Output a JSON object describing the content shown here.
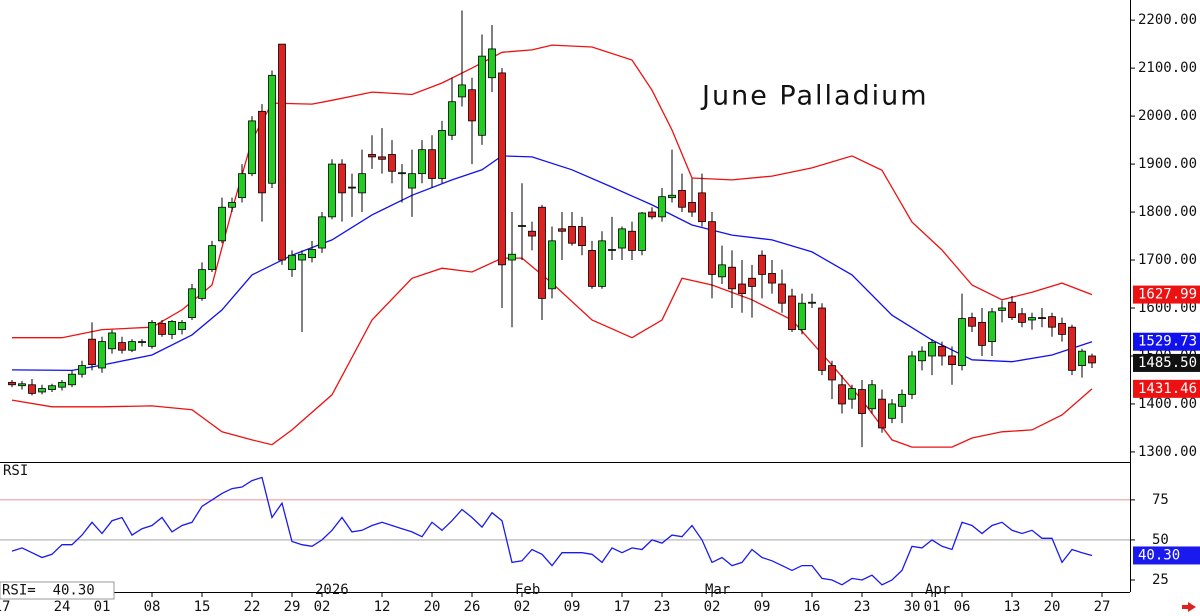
{
  "chart_data": {
    "type": "candlestick",
    "title": "June Palladium",
    "xlim": [
      -1.2,
      111.8
    ],
    "ylim": [
      1279,
      2242
    ],
    "yticks": [
      {
        "value": 1300,
        "label": "1300.00"
      },
      {
        "value": 1400,
        "label": "1400.00"
      },
      {
        "value": 1500,
        "label": "1500.00"
      },
      {
        "value": 1600,
        "label": "1600.00"
      },
      {
        "value": 1700,
        "label": "1700.00"
      },
      {
        "value": 1800,
        "label": "1800.00"
      },
      {
        "value": 1900,
        "label": "1900.00"
      },
      {
        "value": 2000,
        "label": "2000.00"
      },
      {
        "value": 2100,
        "label": "2100.00"
      },
      {
        "value": 2200,
        "label": "2200.00"
      }
    ],
    "xticks": [
      {
        "value": -1,
        "label": "17"
      },
      {
        "value": 5,
        "label": "24"
      },
      {
        "value": 9,
        "label": "01"
      },
      {
        "value": 14,
        "label": "08"
      },
      {
        "value": 19,
        "label": "15"
      },
      {
        "value": 24,
        "label": "22"
      },
      {
        "value": 28,
        "label": "29"
      },
      {
        "value": 31,
        "label": "02"
      },
      {
        "value": 37,
        "label": "12"
      },
      {
        "value": 42,
        "label": "20"
      },
      {
        "value": 46,
        "label": "26"
      },
      {
        "value": 51,
        "label": "02"
      },
      {
        "value": 56,
        "label": "09"
      },
      {
        "value": 61,
        "label": "17"
      },
      {
        "value": 65,
        "label": "23"
      },
      {
        "value": 70,
        "label": "02"
      },
      {
        "value": 75,
        "label": "09"
      },
      {
        "value": 80,
        "label": "16"
      },
      {
        "value": 85,
        "label": "23"
      },
      {
        "value": 90,
        "label": "30"
      },
      {
        "value": 92,
        "label": "01"
      },
      {
        "value": 95,
        "label": "06"
      },
      {
        "value": 100,
        "label": "13"
      },
      {
        "value": 104,
        "label": "20"
      },
      {
        "value": 109,
        "label": "27"
      }
    ],
    "month_labels": [
      {
        "value": 31,
        "label": "2026"
      },
      {
        "value": 51,
        "label": "Feb"
      },
      {
        "value": 70,
        "label": "Mar"
      },
      {
        "value": 92,
        "label": "Apr"
      }
    ],
    "candles": {
      "up_color": "#22cc22",
      "down_color": "#dd2222",
      "last_label": "1485.50",
      "open": [
        1445,
        1438,
        1440,
        1425,
        1430,
        1435,
        1440,
        1462,
        1535,
        1475,
        1515,
        1528,
        1512,
        1528,
        1520,
        1568,
        1545,
        1555,
        1580,
        1620,
        1680,
        1740,
        1810,
        1830,
        1880,
        2010,
        1860,
        2150,
        1680,
        1700,
        1705,
        1725,
        1790,
        1900,
        1850,
        1840,
        1920,
        1915,
        1920,
        1880,
        1850,
        1880,
        1930,
        1870,
        1960,
        2040,
        2055,
        1960,
        2080,
        2090,
        1700,
        1770,
        1760,
        1810,
        1640,
        1765,
        1770,
        1770,
        1720,
        1645,
        1720,
        1725,
        1760,
        1720,
        1800,
        1790,
        1830,
        1845,
        1820,
        1840,
        1780,
        1665,
        1685,
        1650,
        1662,
        1710,
        1672,
        1650,
        1625,
        1555,
        1610,
        1600,
        1480,
        1440,
        1410,
        1430,
        1390,
        1410,
        1370,
        1395,
        1420,
        1490,
        1500,
        1520,
        1500,
        1480,
        1580,
        1570,
        1530,
        1595,
        1612,
        1588,
        1575,
        1580,
        1582,
        1568,
        1560,
        1480,
        1500
      ],
      "high": [
        1450,
        1448,
        1452,
        1440,
        1442,
        1450,
        1470,
        1490,
        1570,
        1540,
        1555,
        1540,
        1535,
        1535,
        1575,
        1575,
        1575,
        1575,
        1650,
        1695,
        1740,
        1830,
        1830,
        1900,
        2000,
        2025,
        2095,
        2150,
        1720,
        1720,
        1740,
        1800,
        1910,
        1910,
        1880,
        1930,
        1960,
        1975,
        1950,
        1900,
        1930,
        1950,
        1960,
        1990,
        2080,
        2220,
        2080,
        2170,
        2190,
        2100,
        1800,
        1860,
        1780,
        1815,
        1770,
        1800,
        1800,
        1790,
        1740,
        1760,
        1790,
        1770,
        1780,
        1800,
        1810,
        1850,
        1930,
        1880,
        1870,
        1880,
        1800,
        1730,
        1720,
        1700,
        1690,
        1720,
        1700,
        1680,
        1640,
        1630,
        1630,
        1610,
        1490,
        1460,
        1440,
        1450,
        1450,
        1430,
        1410,
        1430,
        1510,
        1520,
        1535,
        1530,
        1520,
        1630,
        1590,
        1600,
        1600,
        1615,
        1625,
        1600,
        1590,
        1600,
        1590,
        1580,
        1565,
        1515,
        1505
      ],
      "low": [
        1435,
        1430,
        1418,
        1420,
        1425,
        1428,
        1435,
        1455,
        1470,
        1465,
        1505,
        1505,
        1508,
        1520,
        1515,
        1540,
        1535,
        1545,
        1575,
        1615,
        1675,
        1735,
        1800,
        1820,
        1875,
        1780,
        1850,
        1690,
        1665,
        1550,
        1695,
        1715,
        1785,
        1780,
        1790,
        1800,
        1890,
        1880,
        1860,
        1820,
        1790,
        1860,
        1850,
        1860,
        1950,
        2020,
        1900,
        1940,
        2050,
        1600,
        1560,
        1700,
        1720,
        1575,
        1620,
        1700,
        1730,
        1710,
        1640,
        1640,
        1700,
        1700,
        1700,
        1710,
        1785,
        1780,
        1820,
        1800,
        1790,
        1770,
        1620,
        1650,
        1600,
        1590,
        1580,
        1620,
        1630,
        1590,
        1550,
        1545,
        1600,
        1460,
        1410,
        1380,
        1390,
        1310,
        1380,
        1340,
        1360,
        1360,
        1410,
        1470,
        1460,
        1480,
        1440,
        1470,
        1550,
        1500,
        1500,
        1570,
        1575,
        1560,
        1555,
        1560,
        1540,
        1530,
        1460,
        1455,
        1475
      ],
      "close": [
        1440,
        1442,
        1422,
        1432,
        1438,
        1445,
        1462,
        1480,
        1482,
        1530,
        1548,
        1512,
        1530,
        1530,
        1570,
        1545,
        1572,
        1570,
        1640,
        1680,
        1730,
        1810,
        1820,
        1880,
        1990,
        1840,
        2085,
        1700,
        1710,
        1712,
        1722,
        1790,
        1900,
        1840,
        1852,
        1880,
        1915,
        1910,
        1885,
        1882,
        1880,
        1930,
        1870,
        1970,
        2030,
        2065,
        1990,
        2125,
        2140,
        1690,
        1712,
        1772,
        1750,
        1620,
        1740,
        1760,
        1735,
        1730,
        1645,
        1740,
        1722,
        1765,
        1720,
        1798,
        1790,
        1832,
        1835,
        1810,
        1800,
        1780,
        1670,
        1690,
        1640,
        1630,
        1645,
        1670,
        1652,
        1610,
        1555,
        1610,
        1612,
        1470,
        1450,
        1400,
        1432,
        1380,
        1440,
        1350,
        1400,
        1420,
        1500,
        1510,
        1528,
        1500,
        1482,
        1578,
        1562,
        1522,
        1592,
        1600,
        1580,
        1570,
        1580,
        1578,
        1560,
        1545,
        1470,
        1510,
        1485.5
      ]
    },
    "bands": [
      {
        "color": "#ee1111",
        "last_label": "1627.99",
        "x": [
          0,
          5,
          9,
          14,
          17,
          20,
          22,
          24,
          26,
          30,
          32,
          36,
          40,
          43,
          46,
          49,
          52,
          54,
          58,
          62,
          64,
          66,
          68,
          72,
          76,
          80,
          84,
          87,
          90,
          93,
          96,
          99,
          102,
          105,
          108
        ],
        "values": [
          1538,
          1538,
          1555,
          1560,
          1596,
          1648,
          1804,
          1950,
          2027,
          2025,
          2033,
          2050,
          2045,
          2069,
          2100,
          2133,
          2138,
          2148,
          2144,
          2117,
          2054,
          1971,
          1871,
          1867,
          1875,
          1892,
          1917,
          1887,
          1779,
          1721,
          1648,
          1617,
          1633,
          1652,
          1627.99
        ]
      },
      {
        "color": "#1111ee",
        "last_label": "1529.73",
        "x": [
          0,
          6,
          9,
          14,
          18,
          21,
          24,
          28,
          32,
          36,
          40,
          44,
          47,
          49,
          52,
          56,
          60,
          64,
          68,
          72,
          76,
          80,
          84,
          88,
          92,
          96,
          100,
          104,
          108
        ],
        "values": [
          1471,
          1470,
          1481,
          1502,
          1544,
          1596,
          1669,
          1710,
          1742,
          1794,
          1835,
          1867,
          1888,
          1917,
          1915,
          1888,
          1852,
          1815,
          1773,
          1752,
          1742,
          1717,
          1669,
          1585,
          1533,
          1492,
          1488,
          1502,
          1529.73
        ]
      },
      {
        "color": "#ee1111",
        "last_label": "1431.46",
        "x": [
          0,
          4,
          9,
          14,
          18,
          21,
          24,
          26,
          28,
          32,
          36,
          40,
          43,
          46,
          49,
          51,
          54,
          58,
          62,
          65,
          67,
          70,
          74,
          78,
          82,
          85,
          88,
          90,
          94,
          96,
          99,
          102,
          105,
          108
        ],
        "values": [
          1408,
          1394,
          1394,
          1396,
          1388,
          1342,
          1325,
          1315,
          1346,
          1419,
          1575,
          1662,
          1683,
          1675,
          1704,
          1704,
          1652,
          1575,
          1538,
          1575,
          1662,
          1648,
          1617,
          1575,
          1481,
          1408,
          1325,
          1310,
          1310,
          1329,
          1342,
          1346,
          1377,
          1431.46
        ]
      }
    ],
    "rsi": {
      "label": "RSI",
      "readout": "RSI=  40.30",
      "last_label": "40.30",
      "color": "#1a1aee",
      "ylim": [
        17.5,
        98
      ],
      "yticks": [
        25,
        50,
        75
      ],
      "levels": [
        {
          "value": 75,
          "color": "#e07070"
        },
        {
          "value": 50,
          "color": "#999999"
        }
      ],
      "values": [
        43,
        45,
        42,
        39,
        41,
        47,
        47,
        53,
        61,
        54,
        62,
        64,
        53,
        57,
        59,
        64,
        55,
        59,
        61,
        71,
        75,
        79,
        82,
        83,
        87,
        89,
        64,
        73,
        49,
        47,
        46,
        50,
        56,
        64,
        55,
        56,
        59,
        61,
        59,
        57,
        55,
        52,
        61,
        56,
        62,
        69,
        64,
        58,
        67,
        62,
        36,
        37,
        44,
        41,
        34,
        42,
        42,
        42,
        41,
        36,
        45,
        42,
        45,
        44,
        50,
        48,
        53,
        52,
        59,
        50,
        36,
        39,
        34,
        36,
        44,
        39,
        37,
        34,
        31,
        34,
        34,
        26,
        25,
        22,
        26,
        25,
        28,
        22,
        25,
        31,
        46,
        45,
        50,
        46,
        44,
        61,
        59,
        54,
        59,
        61,
        56,
        54,
        56,
        51,
        51,
        36,
        44,
        42,
        40.3
      ]
    }
  }
}
